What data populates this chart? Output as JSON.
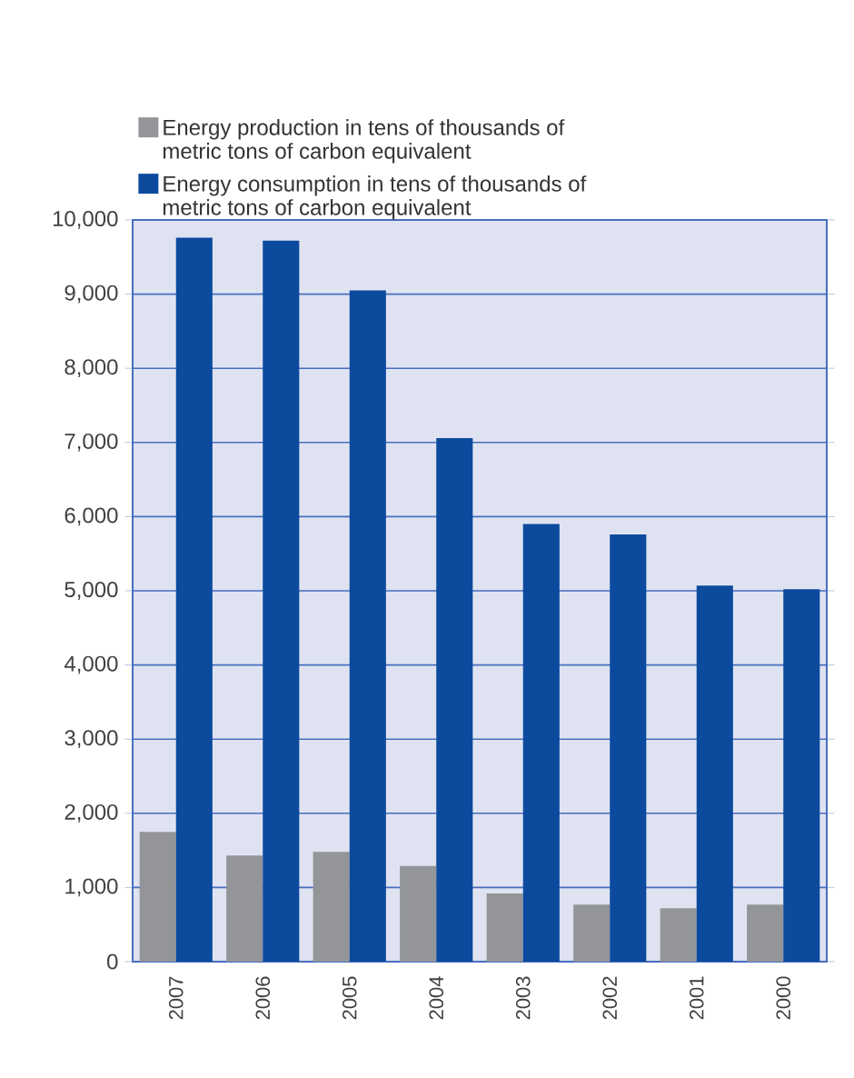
{
  "chart_data": {
    "type": "bar",
    "categories": [
      "2007",
      "2006",
      "2005",
      "2004",
      "2003",
      "2002",
      "2001",
      "2000"
    ],
    "series": [
      {
        "name": "Energy production in tens of thousands of metric tons of carbon equivalent",
        "color": "#939598",
        "values": [
          1750,
          1430,
          1480,
          1290,
          920,
          770,
          720,
          770
        ]
      },
      {
        "name": "Energy consumption in tens of thousands of metric tons of carbon equivalent",
        "color": "#0c4a9e",
        "values": [
          9760,
          9720,
          9050,
          7060,
          5900,
          5760,
          5070,
          5020
        ]
      }
    ],
    "ylim": [
      0,
      10000
    ],
    "yticks": [
      0,
      {
        "value": 1000,
        "label": "1,000"
      },
      {
        "value": 2000,
        "label": "2,000"
      },
      {
        "value": 3000,
        "label": "3,000"
      },
      {
        "value": 4000,
        "label": "4,000"
      },
      {
        "value": 5000,
        "label": "5,000"
      },
      {
        "value": 6000,
        "label": "6,000"
      },
      {
        "value": 7000,
        "label": "7,000"
      },
      {
        "value": 8000,
        "label": "8,000"
      },
      {
        "value": 9000,
        "label": "9,000"
      },
      {
        "value": 10000,
        "label": "10,000"
      }
    ],
    "grid": "y",
    "legend": "top"
  }
}
